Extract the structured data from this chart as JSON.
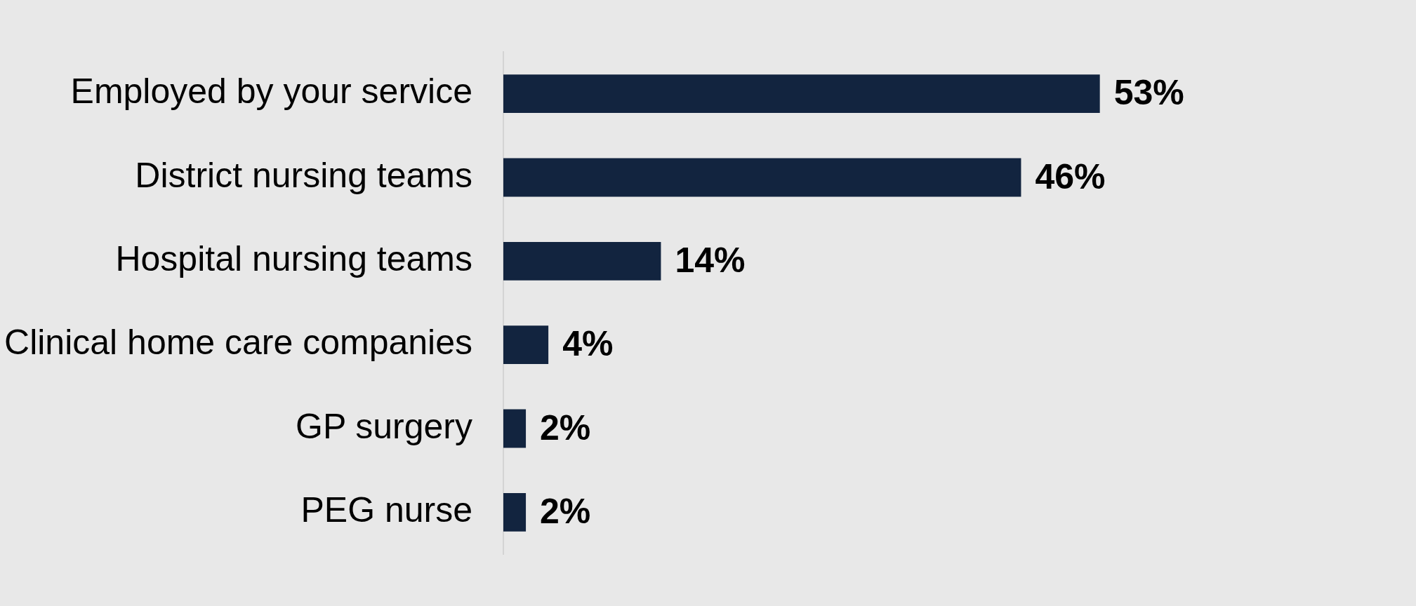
{
  "chart_data": {
    "type": "bar",
    "orientation": "horizontal",
    "categories": [
      "Employed by your service",
      "District nursing teams",
      "Hospital nursing teams",
      "Clinical home care companies",
      "GP surgery",
      "PEG nurse"
    ],
    "values": [
      53,
      46,
      14,
      4,
      2,
      2
    ],
    "color": "#12243f",
    "value_labels": [
      "53%",
      "46%",
      "14%",
      "4%",
      "2%",
      "2%"
    ],
    "legend": false
  }
}
